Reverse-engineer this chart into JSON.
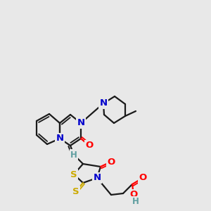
{
  "bg_color": "#e8e8e8",
  "atom_colors": {
    "N": "#0000cc",
    "O": "#ff0000",
    "S": "#ccaa00",
    "C": "#000000",
    "H": "#5f9ea0"
  },
  "bond_color": "#1a1a1a",
  "fig_width": 3.0,
  "fig_height": 3.0,
  "dpi": 100,
  "lw": 1.5,
  "lw2": 2.8
}
